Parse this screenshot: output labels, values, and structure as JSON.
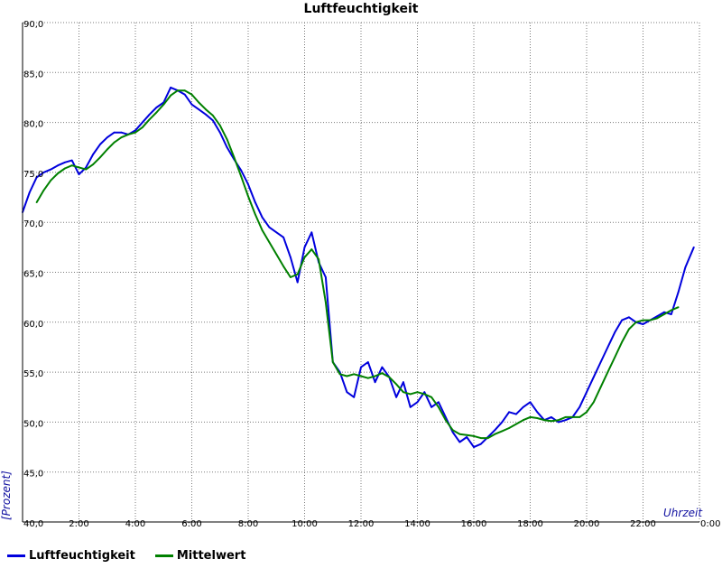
{
  "chart_data": {
    "type": "line",
    "title": "Luftfeuchtigkeit",
    "xlabel": "Uhrzeit",
    "ylabel": "[Prozent]",
    "ylim": [
      40,
      90
    ],
    "xlim": [
      0,
      24
    ],
    "grid": true,
    "legend_position": "bottom-left",
    "y_ticks": [
      "40,0",
      "45,0",
      "50,0",
      "55,0",
      "60,0",
      "65,0",
      "70,0",
      "75,0",
      "80,0",
      "85,0",
      "90,0"
    ],
    "x_ticks": [
      "2:00",
      "4:00",
      "6:00",
      "8:00",
      "10:00",
      "12:00",
      "14:00",
      "16:00",
      "18:00",
      "20:00",
      "22:00",
      "0:00"
    ],
    "series": [
      {
        "name": "Luftfeuchtigkeit",
        "color": "#0000dd",
        "x": [
          0.0,
          0.25,
          0.5,
          0.75,
          1.0,
          1.25,
          1.5,
          1.75,
          2.0,
          2.25,
          2.5,
          2.75,
          3.0,
          3.25,
          3.5,
          3.75,
          4.0,
          4.25,
          4.5,
          4.75,
          5.0,
          5.25,
          5.5,
          5.75,
          6.0,
          6.25,
          6.5,
          6.75,
          7.0,
          7.25,
          7.5,
          7.75,
          8.0,
          8.25,
          8.5,
          8.75,
          9.0,
          9.25,
          9.5,
          9.75,
          10.0,
          10.25,
          10.5,
          10.75,
          11.0,
          11.25,
          11.5,
          11.75,
          12.0,
          12.25,
          12.5,
          12.75,
          13.0,
          13.25,
          13.5,
          13.75,
          14.0,
          14.25,
          14.5,
          14.75,
          15.0,
          15.25,
          15.5,
          15.75,
          16.0,
          16.25,
          16.5,
          16.75,
          17.0,
          17.25,
          17.5,
          17.75,
          18.0,
          18.25,
          18.5,
          18.75,
          19.0,
          19.25,
          19.5,
          19.75,
          20.0,
          20.25,
          20.5,
          20.75,
          21.0,
          21.25,
          21.5,
          21.75,
          22.0,
          22.25,
          22.5,
          22.75,
          23.0,
          23.25,
          23.5,
          23.8
        ],
        "values": [
          71.0,
          73.0,
          74.5,
          75.0,
          75.3,
          75.7,
          76.0,
          76.2,
          74.8,
          75.5,
          76.8,
          77.8,
          78.5,
          79.0,
          79.0,
          78.8,
          79.2,
          80.0,
          80.8,
          81.5,
          82.0,
          83.5,
          83.2,
          82.8,
          81.8,
          81.3,
          80.8,
          80.2,
          79.0,
          77.5,
          76.3,
          75.2,
          73.8,
          72.0,
          70.5,
          69.5,
          69.0,
          68.5,
          66.5,
          64.0,
          67.5,
          69.0,
          66.0,
          64.5,
          56.0,
          55.0,
          53.0,
          52.5,
          55.5,
          56.0,
          54.0,
          55.5,
          54.5,
          52.5,
          54.0,
          51.5,
          52.0,
          53.0,
          51.5,
          52.0,
          50.5,
          49.0,
          48.0,
          48.5,
          47.5,
          47.8,
          48.5,
          49.2,
          50.0,
          51.0,
          50.8,
          51.5,
          52.0,
          51.0,
          50.2,
          50.5,
          50.0,
          50.2,
          50.5,
          51.5,
          53.0,
          54.5,
          56.0,
          57.5,
          59.0,
          60.2,
          60.5,
          60.0,
          59.8,
          60.2,
          60.6,
          61.0,
          60.8,
          63.0,
          65.5,
          67.5
        ]
      },
      {
        "name": "Mittelwert",
        "color": "#008000",
        "x": [
          0.5,
          0.75,
          1.0,
          1.25,
          1.5,
          1.75,
          2.0,
          2.25,
          2.5,
          2.75,
          3.0,
          3.25,
          3.5,
          3.75,
          4.0,
          4.25,
          4.5,
          4.75,
          5.0,
          5.25,
          5.5,
          5.75,
          6.0,
          6.25,
          6.5,
          6.75,
          7.0,
          7.25,
          7.5,
          7.75,
          8.0,
          8.25,
          8.5,
          8.75,
          9.0,
          9.25,
          9.5,
          9.75,
          10.0,
          10.25,
          10.5,
          10.75,
          11.0,
          11.25,
          11.5,
          11.75,
          12.0,
          12.25,
          12.5,
          12.75,
          13.0,
          13.25,
          13.5,
          13.75,
          14.0,
          14.25,
          14.5,
          14.75,
          15.0,
          15.25,
          15.5,
          15.75,
          16.0,
          16.25,
          16.5,
          16.75,
          17.0,
          17.25,
          17.5,
          17.75,
          18.0,
          18.25,
          18.5,
          18.75,
          19.0,
          19.25,
          19.5,
          19.75,
          20.0,
          20.25,
          20.5,
          20.75,
          21.0,
          21.25,
          21.5,
          21.75,
          22.0,
          22.25,
          22.5,
          22.75,
          23.0,
          23.25
        ],
        "values": [
          72.0,
          73.2,
          74.2,
          74.9,
          75.4,
          75.7,
          75.5,
          75.3,
          75.8,
          76.5,
          77.3,
          78.0,
          78.5,
          78.8,
          79.0,
          79.5,
          80.3,
          81.0,
          81.8,
          82.7,
          83.2,
          83.2,
          82.8,
          82.0,
          81.3,
          80.7,
          79.7,
          78.3,
          76.5,
          74.6,
          72.6,
          70.8,
          69.2,
          68.0,
          66.8,
          65.6,
          64.5,
          64.8,
          66.5,
          67.3,
          66.3,
          62.0,
          56.0,
          54.8,
          54.6,
          54.8,
          54.6,
          54.4,
          54.6,
          54.9,
          54.5,
          53.8,
          53.0,
          52.8,
          53.0,
          52.8,
          52.5,
          51.5,
          50.2,
          49.2,
          48.8,
          48.7,
          48.6,
          48.4,
          48.4,
          48.8,
          49.1,
          49.4,
          49.8,
          50.2,
          50.5,
          50.4,
          50.2,
          50.1,
          50.2,
          50.5,
          50.5,
          50.5,
          51.0,
          52.0,
          53.5,
          55.0,
          56.5,
          58.0,
          59.3,
          60.0,
          60.2,
          60.2,
          60.4,
          60.8,
          61.2,
          61.5
        ]
      }
    ]
  },
  "legend": {
    "items": [
      {
        "label": "Luftfeuchtigkeit",
        "color": "#0000dd"
      },
      {
        "label": "Mittelwert",
        "color": "#008000"
      }
    ]
  }
}
